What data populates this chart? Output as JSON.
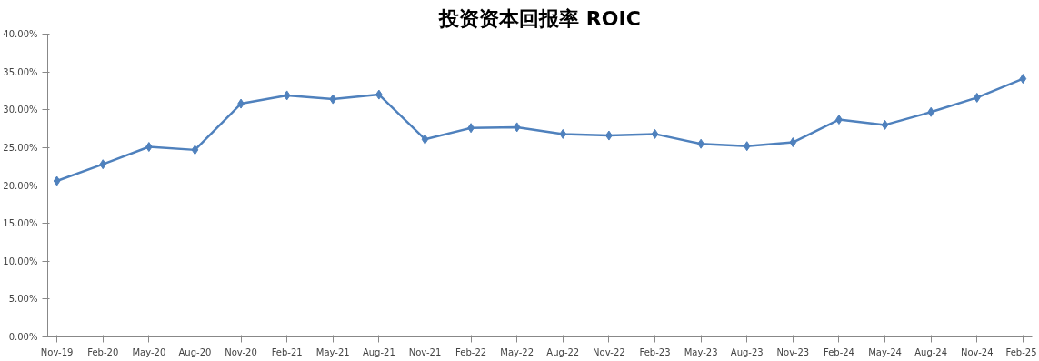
{
  "chart_data": {
    "type": "line",
    "title": "投资资本回报率 ROIC",
    "categories": [
      "Nov-19",
      "Feb-20",
      "May-20",
      "Aug-20",
      "Nov-20",
      "Feb-21",
      "May-21",
      "Aug-21",
      "Nov-21",
      "Feb-22",
      "May-22",
      "Aug-22",
      "Nov-22",
      "Feb-23",
      "May-23",
      "Aug-23",
      "Nov-23",
      "Feb-24",
      "May-24",
      "Aug-24",
      "Nov-24",
      "Feb-25"
    ],
    "series": [
      {
        "color": "#4f81bd",
        "values": [
          20.6,
          22.8,
          25.1,
          24.7,
          30.8,
          31.9,
          31.4,
          32.0,
          26.1,
          27.6,
          27.7,
          26.8,
          26.6,
          26.8,
          25.5,
          25.2,
          25.7,
          28.7,
          28.0,
          29.7,
          31.6,
          34.1
        ]
      }
    ],
    "ylim": [
      0,
      40
    ],
    "yticks": [
      {
        "value": 0,
        "label": "0.00%"
      },
      {
        "value": 5,
        "label": "5.00%"
      },
      {
        "value": 10,
        "label": "10.00%"
      },
      {
        "value": 15,
        "label": "15.00%"
      },
      {
        "value": 20,
        "label": "20.00%"
      },
      {
        "value": 25,
        "label": "25.00%"
      },
      {
        "value": 30,
        "label": "30.00%"
      },
      {
        "value": 35,
        "label": "35.00%"
      },
      {
        "value": 40,
        "label": "40.00%"
      }
    ],
    "grid": false,
    "marker": "diamond",
    "line_style": "solid"
  }
}
